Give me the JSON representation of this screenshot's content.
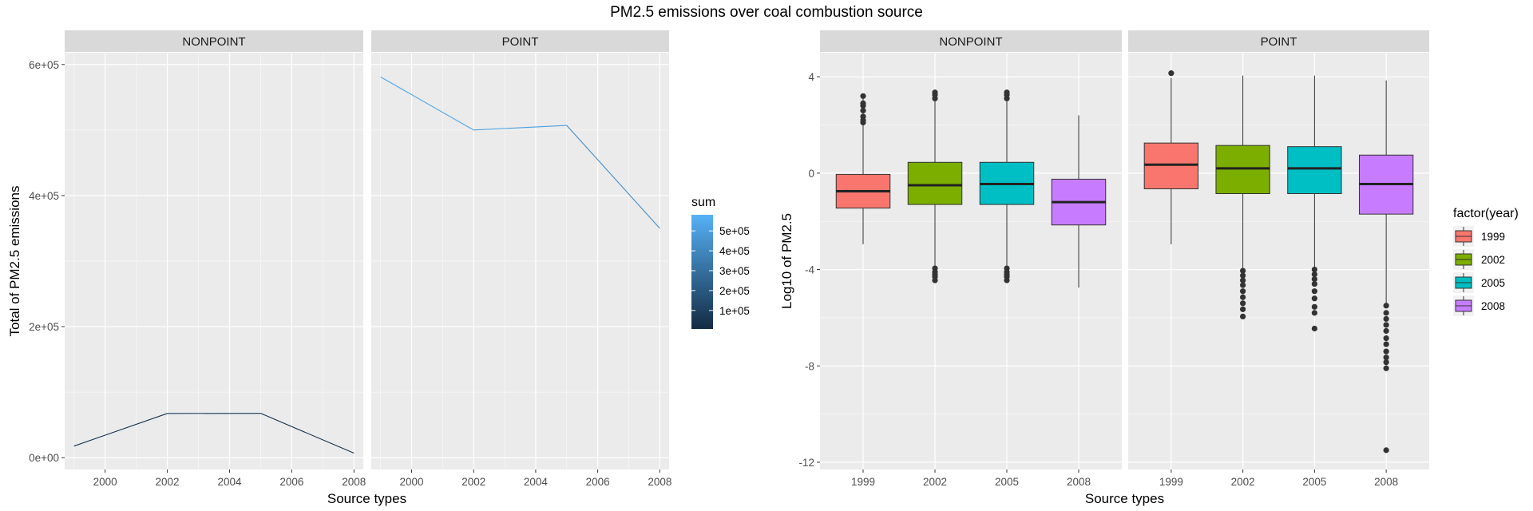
{
  "title": "PM2.5 emissions over coal combustion source",
  "chart_data": [
    {
      "type": "line",
      "panels": [
        "NONPOINT",
        "POINT"
      ],
      "x_ticks": [
        2000,
        2002,
        2004,
        2006,
        2008
      ],
      "xlim": [
        1998.7,
        2008.3
      ],
      "y_ticks": [
        0,
        200000,
        400000,
        600000
      ],
      "y_tick_labels": [
        "0e+00",
        "2e+05",
        "4e+05",
        "6e+05"
      ],
      "ylim": [
        -18000,
        618000
      ],
      "xlabel": "Source types",
      "ylabel": "Total of PM2.5 emissions",
      "series": [
        {
          "panel": "NONPOINT",
          "x": [
            1999,
            2002,
            2005,
            2008
          ],
          "y": [
            17700,
            67500,
            67700,
            7000
          ]
        },
        {
          "panel": "POINT",
          "x": [
            1999,
            2002,
            2005,
            2008
          ],
          "y": [
            581000,
            500000,
            507000,
            350000
          ]
        }
      ],
      "color_legend": {
        "title": "sum",
        "labels": [
          "5e+05",
          "4e+05",
          "3e+05",
          "2e+05",
          "1e+05"
        ],
        "values": [
          500000,
          400000,
          300000,
          200000,
          100000
        ],
        "range": [
          7000,
          581000
        ],
        "low_color": "#132B43",
        "high_color": "#56B1F7"
      }
    },
    {
      "type": "box",
      "panels": [
        "NONPOINT",
        "POINT"
      ],
      "categories": [
        "1999",
        "2002",
        "2005",
        "2008"
      ],
      "y_ticks": [
        -12,
        -8,
        -4,
        0,
        4
      ],
      "y_tick_labels": [
        "-12",
        "-8",
        "-4",
        "0",
        "4"
      ],
      "ylim": [
        -12.3,
        5.0
      ],
      "xlabel": "Source types",
      "ylabel": "Log10 of PM2.5",
      "legend": {
        "title": "factor(year)",
        "items": [
          {
            "label": "1999",
            "color": "#F8766D"
          },
          {
            "label": "2002",
            "color": "#7CAE00"
          },
          {
            "label": "2005",
            "color": "#00BFC4"
          },
          {
            "label": "2008",
            "color": "#C77CFF"
          }
        ]
      },
      "boxes": [
        {
          "panel": "NONPOINT",
          "year": "1999",
          "q1": -1.45,
          "median": -0.75,
          "q3": -0.05,
          "lower": -2.95,
          "upper": 3.2,
          "outliers": [
            3.2,
            2.9,
            2.8,
            2.6,
            2.35,
            2.2,
            2.1
          ]
        },
        {
          "panel": "NONPOINT",
          "year": "2002",
          "q1": -1.3,
          "median": -0.5,
          "q3": 0.45,
          "lower": -3.95,
          "upper": 3.0,
          "outliers": [
            3.35,
            3.25,
            3.1,
            -3.95,
            -4.1,
            -4.2,
            -4.3,
            -4.45
          ]
        },
        {
          "panel": "NONPOINT",
          "year": "2005",
          "q1": -1.3,
          "median": -0.45,
          "q3": 0.45,
          "lower": -3.95,
          "upper": 3.0,
          "outliers": [
            3.35,
            3.25,
            3.1,
            -3.95,
            -4.1,
            -4.2,
            -4.3,
            -4.45
          ]
        },
        {
          "panel": "NONPOINT",
          "year": "2008",
          "q1": -2.15,
          "median": -1.2,
          "q3": -0.25,
          "lower": -4.75,
          "upper": 2.4,
          "outliers": []
        },
        {
          "panel": "POINT",
          "year": "1999",
          "q1": -0.65,
          "median": 0.35,
          "q3": 1.25,
          "lower": -2.95,
          "upper": 3.95,
          "outliers": [
            4.15
          ]
        },
        {
          "panel": "POINT",
          "year": "2002",
          "q1": -0.85,
          "median": 0.2,
          "q3": 1.15,
          "lower": -4.0,
          "upper": 4.05,
          "outliers": [
            -4.05,
            -4.25,
            -4.45,
            -4.65,
            -4.9,
            -5.15,
            -5.4,
            -5.65,
            -5.95
          ]
        },
        {
          "panel": "POINT",
          "year": "2005",
          "q1": -0.85,
          "median": 0.2,
          "q3": 1.1,
          "lower": -3.95,
          "upper": 4.05,
          "outliers": [
            -4.0,
            -4.2,
            -4.4,
            -4.6,
            -4.9,
            -5.2,
            -5.55,
            -5.8,
            -6.45
          ]
        },
        {
          "panel": "POINT",
          "year": "2008",
          "q1": -1.7,
          "median": -0.45,
          "q3": 0.75,
          "lower": -5.5,
          "upper": 3.85,
          "outliers": [
            -5.5,
            -5.8,
            -6.05,
            -6.3,
            -6.55,
            -6.85,
            -7.1,
            -7.4,
            -7.65,
            -7.85,
            -8.1,
            -11.5
          ]
        }
      ]
    }
  ]
}
